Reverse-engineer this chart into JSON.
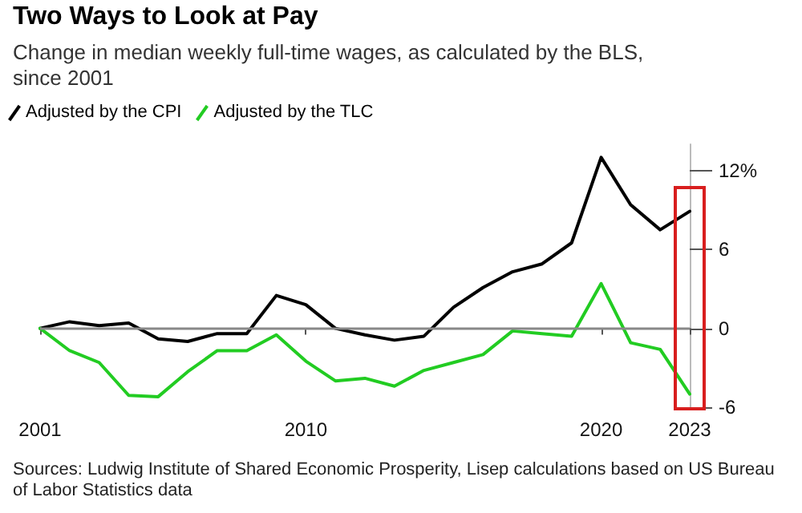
{
  "chart_data": {
    "type": "line",
    "title": "Two Ways to Look at Pay",
    "subtitle": "Change in median weekly full-time wages, as calculated by the BLS, since 2001",
    "x": [
      2001,
      2002,
      2003,
      2004,
      2005,
      2006,
      2007,
      2008,
      2009,
      2010,
      2011,
      2012,
      2013,
      2014,
      2015,
      2016,
      2017,
      2018,
      2019,
      2020,
      2021,
      2022,
      2023
    ],
    "series": [
      {
        "name": "Adjusted by the CPI",
        "color": "#000000",
        "values": [
          0,
          0.5,
          0.2,
          0.4,
          -0.8,
          -1.0,
          -0.4,
          -0.4,
          2.5,
          1.8,
          0,
          -0.5,
          -0.9,
          -0.6,
          1.6,
          3.1,
          4.3,
          4.9,
          6.5,
          13,
          9.4,
          7.5,
          8.9
        ]
      },
      {
        "name": "Adjusted by the TLC",
        "color": "#22cc22",
        "values": [
          0,
          -1.7,
          -2.6,
          -5.1,
          -5.2,
          -3.3,
          -1.7,
          -1.7,
          -0.5,
          -2.5,
          -4.0,
          -3.8,
          -4.4,
          -3.2,
          -2.6,
          -2.0,
          -0.2,
          -0.4,
          -0.6,
          3.4,
          -1.1,
          -1.6,
          -5.0
        ]
      }
    ],
    "xlim": [
      2001,
      2023
    ],
    "xticks": [
      2001,
      2010,
      2020,
      2023
    ],
    "ylim": [
      -6,
      14
    ],
    "yticks": [
      {
        "value": 12,
        "label": "12%"
      },
      6,
      0,
      -6
    ],
    "ref_lines": [
      {
        "axis": "y",
        "value": 0,
        "color": "#888888"
      }
    ],
    "legend": "top left",
    "grid": false,
    "marker": "none",
    "line_style": "solid",
    "annotations": [
      "Sources: Ludwig Institute of Shared Economic Prosperity, Lisep calculations based on US Bureau of Labor Statistics data"
    ]
  }
}
